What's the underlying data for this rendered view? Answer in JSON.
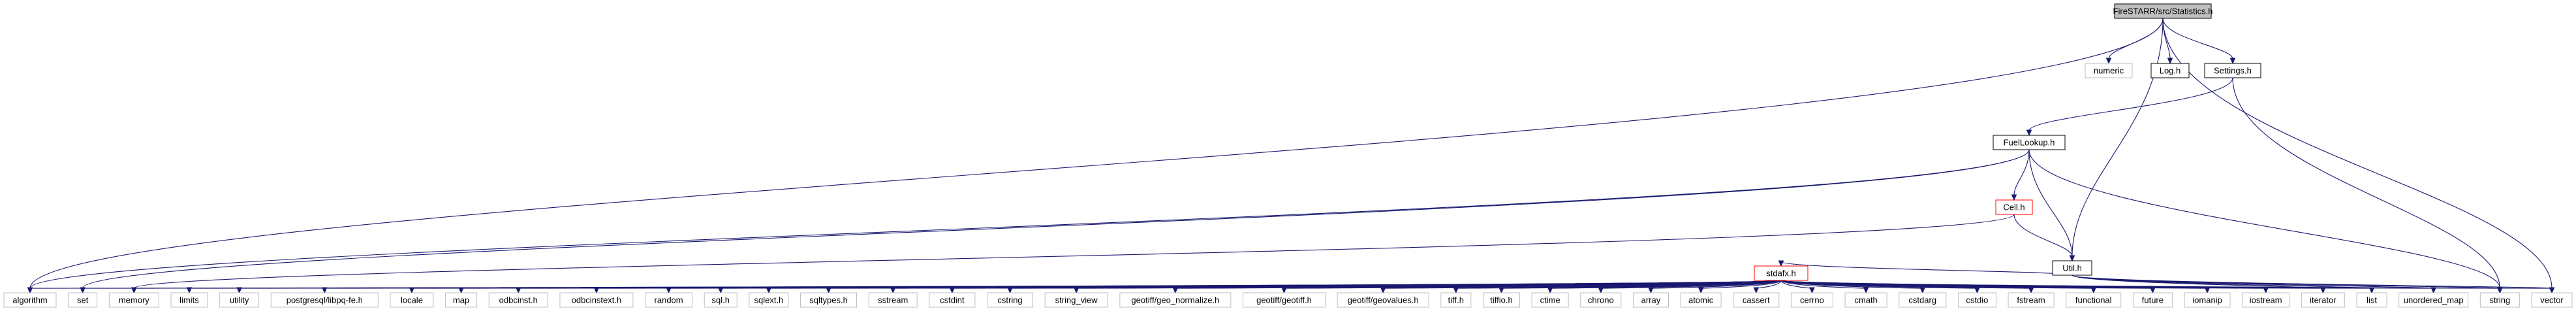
{
  "colors": {
    "edge": "#191970",
    "root_fill": "#bfbfbf",
    "node_border": "#000000",
    "external_border": "#bfbfbf",
    "truncated_border": "#ff0000"
  },
  "nodes": [
    {
      "id": "statistics",
      "label": "FireSTARR/src/Statistics.h",
      "kind": "root"
    },
    {
      "id": "numeric",
      "label": "numeric",
      "kind": "external"
    },
    {
      "id": "log",
      "label": "Log.h",
      "kind": "header"
    },
    {
      "id": "settings",
      "label": "Settings.h",
      "kind": "header"
    },
    {
      "id": "fuellookup",
      "label": "FuelLookup.h",
      "kind": "header"
    },
    {
      "id": "cell",
      "label": "Cell.h",
      "kind": "truncated"
    },
    {
      "id": "util",
      "label": "Util.h",
      "kind": "header"
    },
    {
      "id": "stdafx",
      "label": "stdafx.h",
      "kind": "truncated"
    },
    {
      "id": "algorithm",
      "label": "algorithm",
      "kind": "external"
    },
    {
      "id": "set",
      "label": "set",
      "kind": "external"
    },
    {
      "id": "memory",
      "label": "memory",
      "kind": "external"
    },
    {
      "id": "limits",
      "label": "limits",
      "kind": "external"
    },
    {
      "id": "utility",
      "label": "utility",
      "kind": "external"
    },
    {
      "id": "libpq",
      "label": "postgresql/libpq-fe.h",
      "kind": "external"
    },
    {
      "id": "locale",
      "label": "locale",
      "kind": "external"
    },
    {
      "id": "map",
      "label": "map",
      "kind": "external"
    },
    {
      "id": "odbcinst",
      "label": "odbcinst.h",
      "kind": "external"
    },
    {
      "id": "odbcinstext",
      "label": "odbcinstext.h",
      "kind": "external"
    },
    {
      "id": "random",
      "label": "random",
      "kind": "external"
    },
    {
      "id": "sql",
      "label": "sql.h",
      "kind": "external"
    },
    {
      "id": "sqlext",
      "label": "sqlext.h",
      "kind": "external"
    },
    {
      "id": "sqltypes",
      "label": "sqltypes.h",
      "kind": "external"
    },
    {
      "id": "sstream",
      "label": "sstream",
      "kind": "external"
    },
    {
      "id": "cstdint",
      "label": "cstdint",
      "kind": "external"
    },
    {
      "id": "cstring",
      "label": "cstring",
      "kind": "external"
    },
    {
      "id": "string_view",
      "label": "string_view",
      "kind": "external"
    },
    {
      "id": "geo_normalize",
      "label": "geotiff/geo_normalize.h",
      "kind": "external"
    },
    {
      "id": "geotiff",
      "label": "geotiff/geotiff.h",
      "kind": "external"
    },
    {
      "id": "geovalues",
      "label": "geotiff/geovalues.h",
      "kind": "external"
    },
    {
      "id": "tiff",
      "label": "tiff.h",
      "kind": "external"
    },
    {
      "id": "tiffio",
      "label": "tiffio.h",
      "kind": "external"
    },
    {
      "id": "ctime",
      "label": "ctime",
      "kind": "external"
    },
    {
      "id": "chrono",
      "label": "chrono",
      "kind": "external"
    },
    {
      "id": "array",
      "label": "array",
      "kind": "external"
    },
    {
      "id": "atomic",
      "label": "atomic",
      "kind": "external"
    },
    {
      "id": "cassert",
      "label": "cassert",
      "kind": "external"
    },
    {
      "id": "cerrno",
      "label": "cerrno",
      "kind": "external"
    },
    {
      "id": "cmath",
      "label": "cmath",
      "kind": "external"
    },
    {
      "id": "cstdarg",
      "label": "cstdarg",
      "kind": "external"
    },
    {
      "id": "cstdio",
      "label": "cstdio",
      "kind": "external"
    },
    {
      "id": "fstream",
      "label": "fstream",
      "kind": "external"
    },
    {
      "id": "functional",
      "label": "functional",
      "kind": "external"
    },
    {
      "id": "future",
      "label": "future",
      "kind": "external"
    },
    {
      "id": "iomanip",
      "label": "iomanip",
      "kind": "external"
    },
    {
      "id": "iostream",
      "label": "iostream",
      "kind": "external"
    },
    {
      "id": "iterator",
      "label": "iterator",
      "kind": "external"
    },
    {
      "id": "list",
      "label": "list",
      "kind": "external"
    },
    {
      "id": "unordered_map",
      "label": "unordered_map",
      "kind": "external"
    },
    {
      "id": "string",
      "label": "string",
      "kind": "external"
    },
    {
      "id": "vector",
      "label": "vector",
      "kind": "external"
    }
  ],
  "edges": [
    [
      "statistics",
      "algorithm"
    ],
    [
      "statistics",
      "numeric"
    ],
    [
      "statistics",
      "log"
    ],
    [
      "statistics",
      "settings"
    ],
    [
      "statistics",
      "util"
    ],
    [
      "statistics",
      "vector"
    ],
    [
      "settings",
      "fuellookup"
    ],
    [
      "settings",
      "string"
    ],
    [
      "fuellookup",
      "algorithm"
    ],
    [
      "fuellookup",
      "set"
    ],
    [
      "fuellookup",
      "cell"
    ],
    [
      "fuellookup",
      "util"
    ],
    [
      "fuellookup",
      "string"
    ],
    [
      "cell",
      "util"
    ],
    [
      "cell",
      "memory"
    ],
    [
      "util",
      "stdafx"
    ],
    [
      "util",
      "vector"
    ],
    [
      "util",
      "string"
    ],
    [
      "util",
      "iterator"
    ],
    [
      "util",
      "list"
    ],
    [
      "util",
      "unordered_map"
    ],
    [
      "stdafx",
      "algorithm"
    ],
    [
      "stdafx",
      "set"
    ],
    [
      "stdafx",
      "memory"
    ],
    [
      "stdafx",
      "limits"
    ],
    [
      "stdafx",
      "utility"
    ],
    [
      "stdafx",
      "libpq"
    ],
    [
      "stdafx",
      "locale"
    ],
    [
      "stdafx",
      "map"
    ],
    [
      "stdafx",
      "odbcinst"
    ],
    [
      "stdafx",
      "odbcinstext"
    ],
    [
      "stdafx",
      "random"
    ],
    [
      "stdafx",
      "sql"
    ],
    [
      "stdafx",
      "sqlext"
    ],
    [
      "stdafx",
      "sqltypes"
    ],
    [
      "stdafx",
      "sstream"
    ],
    [
      "stdafx",
      "cstdint"
    ],
    [
      "stdafx",
      "cstring"
    ],
    [
      "stdafx",
      "string_view"
    ],
    [
      "stdafx",
      "geo_normalize"
    ],
    [
      "stdafx",
      "geotiff"
    ],
    [
      "stdafx",
      "geovalues"
    ],
    [
      "stdafx",
      "tiff"
    ],
    [
      "stdafx",
      "tiffio"
    ],
    [
      "stdafx",
      "ctime"
    ],
    [
      "stdafx",
      "chrono"
    ],
    [
      "stdafx",
      "array"
    ],
    [
      "stdafx",
      "atomic"
    ],
    [
      "stdafx",
      "cassert"
    ],
    [
      "stdafx",
      "cerrno"
    ],
    [
      "stdafx",
      "cmath"
    ],
    [
      "stdafx",
      "cstdarg"
    ],
    [
      "stdafx",
      "cstdio"
    ],
    [
      "stdafx",
      "fstream"
    ],
    [
      "stdafx",
      "functional"
    ],
    [
      "stdafx",
      "future"
    ],
    [
      "stdafx",
      "iomanip"
    ],
    [
      "stdafx",
      "iostream"
    ],
    [
      "stdafx",
      "iterator"
    ],
    [
      "stdafx",
      "list"
    ],
    [
      "stdafx",
      "unordered_map"
    ],
    [
      "stdafx",
      "string"
    ],
    [
      "stdafx",
      "vector"
    ]
  ]
}
